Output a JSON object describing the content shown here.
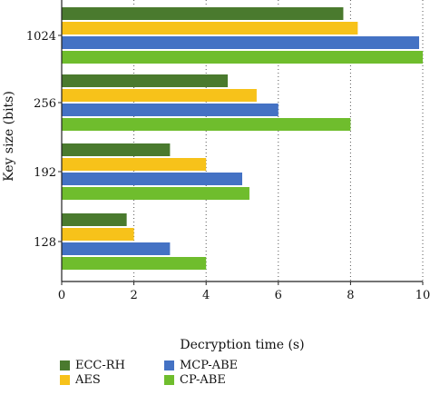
{
  "chart_data": {
    "type": "bar",
    "orientation": "horizontal",
    "categories": [
      "128",
      "192",
      "256",
      "1024"
    ],
    "series": [
      {
        "name": "ECC-RH",
        "color": "#4a7a2e",
        "values": [
          1.8,
          3.0,
          4.6,
          7.8
        ]
      },
      {
        "name": "AES",
        "color": "#f7c21a",
        "values": [
          2.0,
          4.0,
          5.4,
          8.2
        ]
      },
      {
        "name": "MCP-ABE",
        "color": "#4472c4",
        "values": [
          3.0,
          5.0,
          6.0,
          9.9
        ]
      },
      {
        "name": "CP-ABE",
        "color": "#6fbd2d",
        "values": [
          4.0,
          5.2,
          8.0,
          10.0
        ]
      }
    ],
    "xlabel": "Decryption time (s)",
    "ylabel": "Key size (bits)",
    "xlim": [
      0,
      10
    ],
    "xticks": [
      "0",
      "2",
      "4",
      "6",
      "8",
      "10"
    ],
    "grid": "vertical dotted",
    "legend_position": "bottom"
  }
}
